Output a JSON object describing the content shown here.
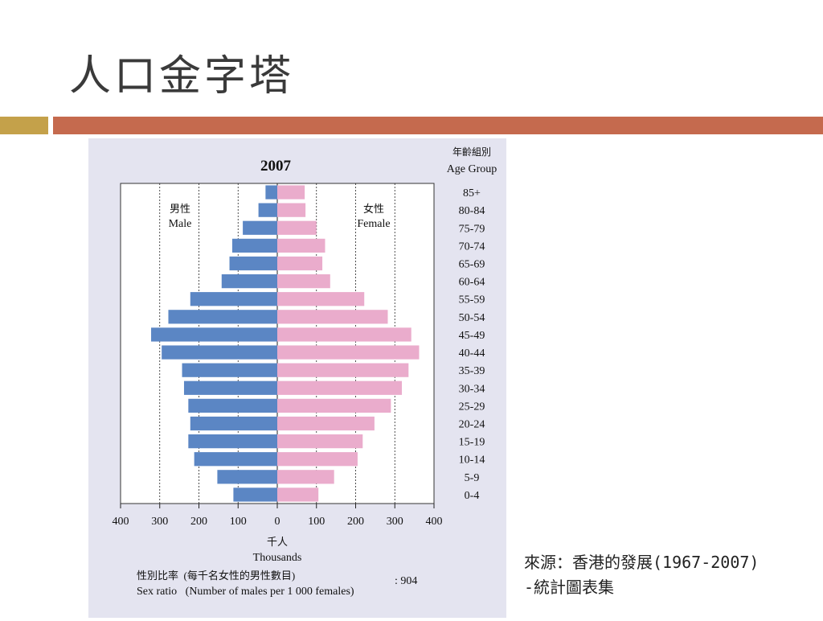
{
  "slide": {
    "title": "人口金字塔",
    "source_line1": "來源：香港的發展(1967-2007)",
    "source_line2": "-統計圖表集",
    "colors": {
      "title_bar_left": "#c4a14a",
      "title_bar_right": "#c56a4e",
      "panel": "#e4e4f0"
    }
  },
  "chart_data": {
    "type": "bar",
    "orientation": "horizontal-pyramid",
    "title": "2007",
    "age_group_label_zh": "年齡組別",
    "age_group_label_en": "Age Group",
    "categories": [
      "85+",
      "80-84",
      "75-79",
      "70-74",
      "65-69",
      "60-64",
      "55-59",
      "50-54",
      "45-49",
      "40-44",
      "35-39",
      "30-34",
      "25-29",
      "20-24",
      "15-19",
      "10-14",
      "5-9",
      "0-4"
    ],
    "series": [
      {
        "name_zh": "男性",
        "name": "Male",
        "color": "#5b86c4",
        "values": [
          30,
          48,
          88,
          115,
          122,
          142,
          222,
          278,
          322,
          295,
          243,
          238,
          227,
          222,
          227,
          212,
          153,
          112
        ]
      },
      {
        "name_zh": "女性",
        "name": "Female",
        "color": "#eaaccc",
        "values": [
          70,
          72,
          100,
          122,
          115,
          135,
          222,
          282,
          342,
          362,
          335,
          318,
          290,
          248,
          218,
          205,
          145,
          105
        ]
      }
    ],
    "xlim": [
      -400,
      400
    ],
    "x_ticks": [
      "400",
      "300",
      "200",
      "100",
      "0",
      "100",
      "200",
      "300",
      "400"
    ],
    "xlabel_zh": "千人",
    "xlabel_en": "Thousands",
    "sex_ratio_label_zh": "性別比率  (每千名女性的男性數目)",
    "sex_ratio_label_en": "Sex ratio   (Number of males per 1 000 females)",
    "sex_ratio_value": ": 904",
    "grid": "vertical-dotted"
  }
}
